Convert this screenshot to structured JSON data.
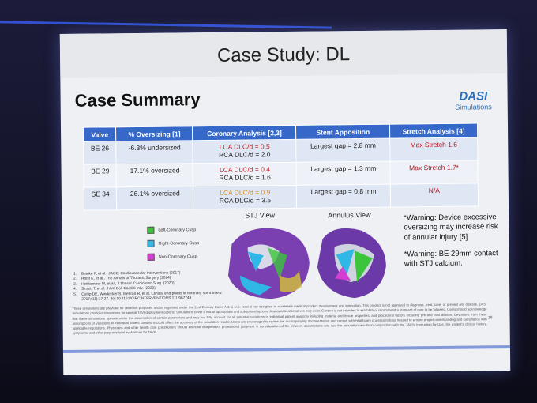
{
  "slide_title": "Case Study: DL",
  "heading": "Case Summary",
  "logo": {
    "name": "DASI",
    "tagline": "Simulations"
  },
  "table": {
    "headers": [
      "Valve",
      "% Oversizing [1]",
      "Coronary Analysis [2,3]",
      "Stent Apposition",
      "Stretch Analysis [4]"
    ],
    "rows": [
      {
        "valve": "BE 26",
        "oversizing": "-6.3% undersized",
        "lca": "LCA DLC/d = 0.5",
        "rca": "RCA DLC/d = 2.0",
        "apposition": "Largest gap = 2.8 mm",
        "stretch": "Max Stretch 1.6"
      },
      {
        "valve": "BE 29",
        "oversizing": "17.1% oversized",
        "lca": "LCA DLC/d = 0.4",
        "rca": "RCA DLC/d = 1.6",
        "apposition": "Largest gap = 1.3 mm",
        "stretch": "Max Stretch 1.7*"
      },
      {
        "valve": "SE 34",
        "oversizing": "26.1% oversized",
        "lca": "LCA DLC/d = 0.9",
        "rca": "RCA DLC/d = 3.5",
        "apposition": "Largest gap = 0.8 mm",
        "stretch": "N/A"
      }
    ]
  },
  "legend": [
    {
      "label": "Left-Coronary Cusp",
      "color": "#3cc43c"
    },
    {
      "label": "Right-Coronary Cusp",
      "color": "#2fb7e6"
    },
    {
      "label": "Non-Coronary Cusp",
      "color": "#d23fd2"
    }
  ],
  "views": [
    "STJ View",
    "Annulus View"
  ],
  "warnings": [
    "*Warning: Device excessive oversizing may increase risk of annular injury [5]",
    "*Warning: BE 29mm contact with STJ calcium."
  ],
  "references": [
    {
      "n": "1.",
      "text": "Blanke P, et al., JACC: Cardiovascular Interventions (2017)"
    },
    {
      "n": "2.",
      "text": "Holst K, et al., The Annals of Thoracic Surgery (2024)"
    },
    {
      "n": "3.",
      "text": "Heitkemper M, et al., J Thorac Cardiovasc Surg. (2020)"
    },
    {
      "n": "4.",
      "text": "Sirset, T. et al. J Am Coll Cardiol Intv. (2023)"
    },
    {
      "n": "5.",
      "text": "Cutlip DE, Windecker S, Mehran R, et al. Clinical end points in coronary stent Interv. 2017;(11):17-27. doi:10.1161/CIRCINTERVENTIONS.111.967749"
    }
  ],
  "disclaimer": "These simulations are provided for research purposes and/or regulated under the 21st Century Cures Act, a U.S. federal law designed to accelerate medical product development and innovation. This product is not approved to diagnose, treat, cure, or prevent any disease. DASI Simulations provides simulations for several TAVI deployment options. Simulations cover a mix of appropriate and suboptimal options. Appropriate alternatives may exist. Content is not intended to establish or recommend a standard of care to be followed. Users should acknowledge that these simulations operate under the assumption of certain parameters and may not fully account for all potential variations in individual patient anatomy including material and tissue properties, and procedural factors including pre and post dilation. Deviations from these assumptions or variations in individual patient conditions could affect the accuracy of the simulation results. Users are encouraged to review the accompanying documentation and consult with healthcare professionals as needed to ensure proper understanding and compliance with applicable regulations. Physicians and other health care practitioners should exercise independent professional judgment in consideration of the inherent assumptions and use the simulation results in conjunction with the TAVI's Instruction-for-Use, the patient's clinical history, symptoms, and other preprocedural evaluations for TAVR.",
  "page_number": "18"
}
